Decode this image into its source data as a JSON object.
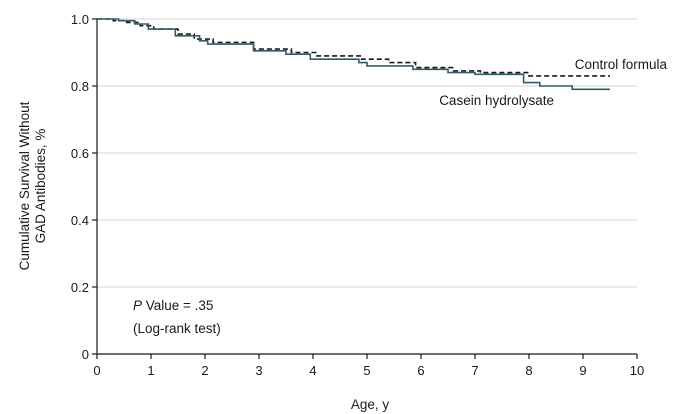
{
  "chart_data": {
    "type": "line",
    "xlabel": "Age, y",
    "ylabel_lines": [
      "Cumulative Survival Without",
      "GAD Antibodies, %"
    ],
    "xlim": [
      0,
      10
    ],
    "ylim": [
      0,
      1.0
    ],
    "x_ticks": [
      0,
      1,
      2,
      3,
      4,
      5,
      6,
      7,
      8,
      9,
      10
    ],
    "y_ticks": [
      0,
      0.2,
      0.4,
      0.6,
      0.8,
      1.0
    ],
    "y_tick_labels": [
      "0",
      "0.2",
      "0.4",
      "0.6",
      "0.8",
      "1.0"
    ],
    "grid": "horizontal",
    "annotation": {
      "p_label": "P",
      "p_text": " Value = .35",
      "test": "(Log-rank test)"
    },
    "series": [
      {
        "name": "Control formula",
        "style": "dashed",
        "color": "#1a1a1a",
        "points": [
          [
            0,
            1.0
          ],
          [
            0.3,
            1.0
          ],
          [
            0.3,
            0.995
          ],
          [
            0.55,
            0.995
          ],
          [
            0.55,
            0.99
          ],
          [
            0.8,
            0.99
          ],
          [
            0.8,
            0.98
          ],
          [
            1.05,
            0.98
          ],
          [
            1.05,
            0.97
          ],
          [
            1.5,
            0.97
          ],
          [
            1.5,
            0.955
          ],
          [
            1.8,
            0.955
          ],
          [
            1.8,
            0.94
          ],
          [
            2.15,
            0.94
          ],
          [
            2.15,
            0.93
          ],
          [
            2.9,
            0.93
          ],
          [
            2.9,
            0.91
          ],
          [
            3.6,
            0.91
          ],
          [
            3.6,
            0.9
          ],
          [
            4.05,
            0.9
          ],
          [
            4.05,
            0.89
          ],
          [
            4.9,
            0.89
          ],
          [
            4.9,
            0.88
          ],
          [
            5.4,
            0.88
          ],
          [
            5.4,
            0.87
          ],
          [
            5.9,
            0.87
          ],
          [
            5.9,
            0.855
          ],
          [
            6.6,
            0.855
          ],
          [
            6.6,
            0.845
          ],
          [
            7.1,
            0.845
          ],
          [
            7.1,
            0.84
          ],
          [
            8.0,
            0.84
          ],
          [
            8.0,
            0.83
          ],
          [
            9.5,
            0.83
          ]
        ]
      },
      {
        "name": "Casein hydrolysate",
        "style": "solid",
        "color": "#2f5f66",
        "points": [
          [
            0,
            1.0
          ],
          [
            0.4,
            1.0
          ],
          [
            0.4,
            0.995
          ],
          [
            0.7,
            0.995
          ],
          [
            0.7,
            0.985
          ],
          [
            0.95,
            0.985
          ],
          [
            0.95,
            0.97
          ],
          [
            1.45,
            0.97
          ],
          [
            1.45,
            0.95
          ],
          [
            1.9,
            0.95
          ],
          [
            1.9,
            0.935
          ],
          [
            2.05,
            0.935
          ],
          [
            2.05,
            0.925
          ],
          [
            2.9,
            0.925
          ],
          [
            2.9,
            0.905
          ],
          [
            3.5,
            0.905
          ],
          [
            3.5,
            0.895
          ],
          [
            3.95,
            0.895
          ],
          [
            3.95,
            0.88
          ],
          [
            4.85,
            0.88
          ],
          [
            4.85,
            0.87
          ],
          [
            5.0,
            0.87
          ],
          [
            5.0,
            0.86
          ],
          [
            5.85,
            0.86
          ],
          [
            5.85,
            0.85
          ],
          [
            6.5,
            0.85
          ],
          [
            6.5,
            0.84
          ],
          [
            7.0,
            0.84
          ],
          [
            7.0,
            0.835
          ],
          [
            7.9,
            0.835
          ],
          [
            7.9,
            0.81
          ],
          [
            8.2,
            0.81
          ],
          [
            8.2,
            0.8
          ],
          [
            8.8,
            0.8
          ],
          [
            8.8,
            0.79
          ],
          [
            9.5,
            0.79
          ]
        ]
      }
    ]
  }
}
